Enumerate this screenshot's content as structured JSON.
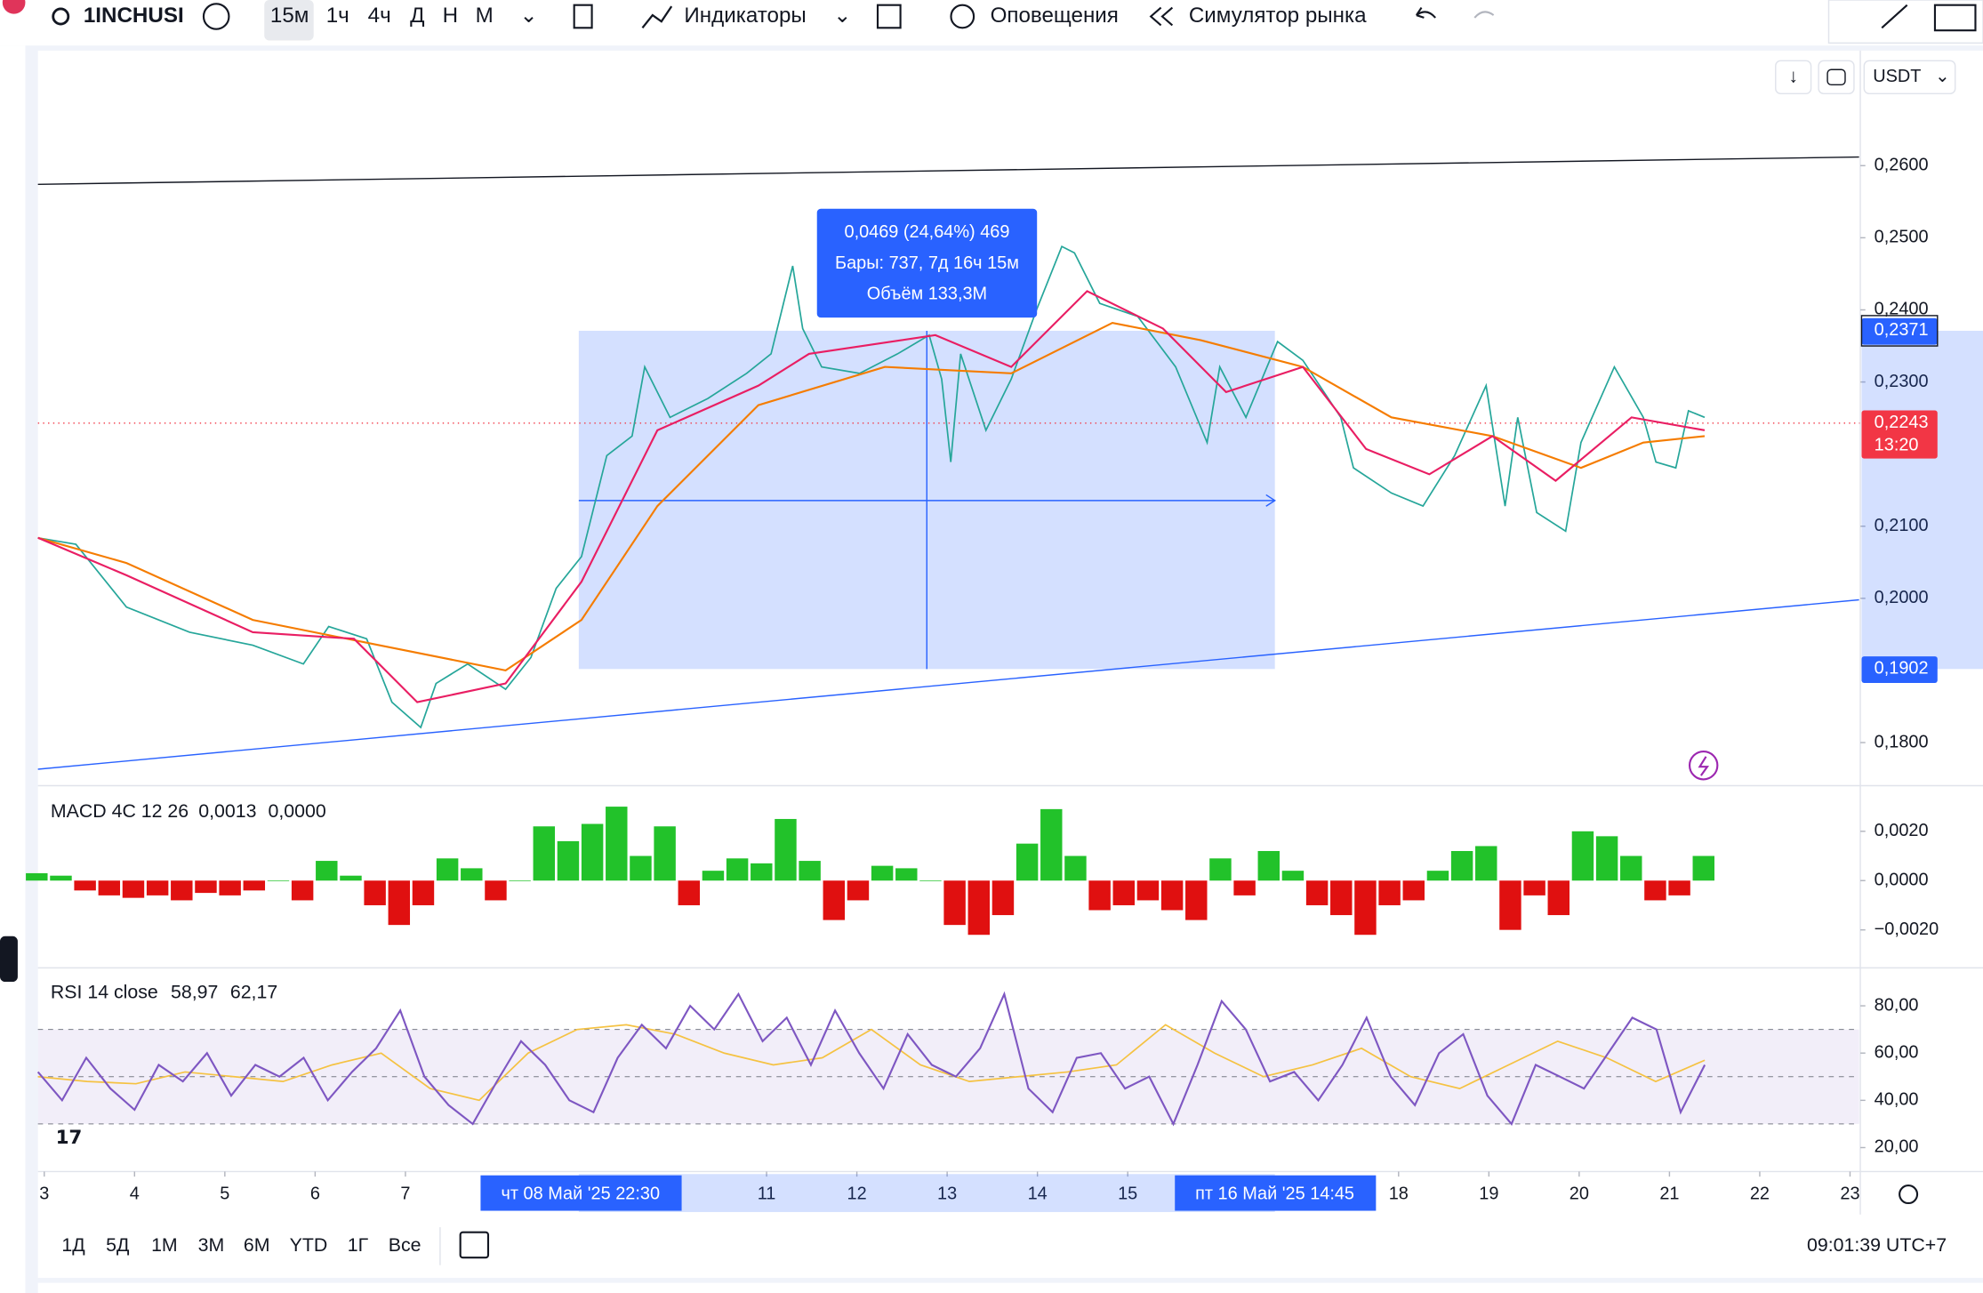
{
  "toolbar": {
    "symbol": "1INCHUSI",
    "intervals": [
      "15м",
      "1ч",
      "4ч",
      "Д",
      "Н",
      "М"
    ],
    "indicators": "Индикаторы",
    "alerts": "Оповещения",
    "replay": "Симулятор рынка"
  },
  "currency": "USDT",
  "time_axis": {
    "xlim": [
      2.93,
      23.1
    ],
    "xticks": [
      3,
      4,
      5,
      6,
      7,
      11,
      12,
      13,
      14,
      15,
      18,
      19,
      20,
      21,
      22,
      23
    ],
    "start_label": "чт 08 Май '25   22:30",
    "end_label": "пт 16 Май '25   14:45"
  },
  "price_pane": {
    "ylim": [
      0.1742,
      0.2756
    ],
    "yticks": [
      {
        "value": 0.26,
        "label": "0,2600"
      },
      {
        "value": 0.25,
        "label": "0,2500"
      },
      {
        "value": 0.24,
        "label": "0,2400"
      },
      {
        "value": 0.23,
        "label": "0,2300"
      },
      {
        "value": 0.21,
        "label": "0,2100"
      },
      {
        "value": 0.2,
        "label": "0,2000"
      },
      {
        "value": 0.18,
        "label": "0,1800"
      }
    ],
    "price": {
      "color": "#26a69a",
      "x": [
        2.93,
        3.35,
        3.91,
        4.61,
        5.31,
        5.87,
        6.15,
        6.57,
        6.85,
        7.17,
        7.34,
        7.69,
        8.11,
        8.39,
        8.67,
        8.95,
        9.23,
        9.51,
        9.65,
        9.93,
        10.35,
        10.78,
        11.05,
        11.29,
        11.4,
        11.61,
        12.03,
        12.45,
        12.8,
        12.94,
        13.04,
        13.15,
        13.43,
        13.71,
        13.99,
        14.27,
        14.41,
        14.69,
        15.11,
        15.53,
        15.88,
        16.02,
        16.31,
        16.66,
        16.94,
        17.36,
        17.5,
        17.92,
        18.27,
        18.62,
        18.97,
        19.18,
        19.32,
        19.53,
        19.85,
        20.02,
        20.39,
        20.71,
        20.85,
        21.07,
        21.21,
        21.39
      ],
      "values": [
        0.2084,
        0.2075,
        0.1988,
        0.1953,
        0.1935,
        0.1909,
        0.1961,
        0.1944,
        0.1856,
        0.1821,
        0.1882,
        0.1909,
        0.1874,
        0.1918,
        0.2014,
        0.2058,
        0.2198,
        0.2225,
        0.2321,
        0.2251,
        0.2277,
        0.2312,
        0.2339,
        0.2461,
        0.2374,
        0.2321,
        0.2312,
        0.2339,
        0.2365,
        0.2304,
        0.2189,
        0.2339,
        0.2233,
        0.2304,
        0.24,
        0.2488,
        0.2479,
        0.2409,
        0.2391,
        0.2321,
        0.2216,
        0.2321,
        0.2251,
        0.2356,
        0.233,
        0.2251,
        0.2181,
        0.2146,
        0.2128,
        0.2198,
        0.2295,
        0.2128,
        0.2251,
        0.2119,
        0.2093,
        0.2216,
        0.2321,
        0.2251,
        0.2189,
        0.2181,
        0.226,
        0.2251
      ]
    },
    "ma_slow": {
      "color": "#f57c00",
      "x": [
        2.93,
        3.91,
        5.31,
        6.71,
        8.11,
        8.95,
        9.79,
        10.91,
        12.31,
        13.71,
        14.83,
        15.81,
        16.94,
        17.92,
        19.04,
        20.02,
        20.71,
        21.39
      ],
      "values": [
        0.2084,
        0.2049,
        0.197,
        0.1935,
        0.19,
        0.197,
        0.2128,
        0.2268,
        0.2321,
        0.2312,
        0.2382,
        0.2358,
        0.2321,
        0.2251,
        0.2225,
        0.2181,
        0.2216,
        0.2225
      ]
    },
    "ma_fast": {
      "color": "#e91e63",
      "x": [
        2.93,
        3.91,
        5.31,
        6.43,
        7.13,
        8.11,
        8.95,
        9.79,
        10.91,
        11.47,
        12.87,
        13.71,
        14.55,
        15.39,
        16.09,
        16.94,
        17.64,
        18.34,
        19.04,
        19.74,
        20.58,
        21.39
      ],
      "values": [
        0.2084,
        0.2032,
        0.1953,
        0.1944,
        0.1856,
        0.1882,
        0.2023,
        0.2233,
        0.2295,
        0.2339,
        0.2365,
        0.2321,
        0.2426,
        0.2374,
        0.2286,
        0.2321,
        0.2207,
        0.2172,
        0.2225,
        0.2163,
        0.2251,
        0.2233
      ]
    },
    "trend_black": {
      "x": [
        2.93,
        23.1
      ],
      "values": [
        0.2574,
        0.2612
      ]
    },
    "trend_blue": {
      "x": [
        2.93,
        23.1
      ],
      "values": [
        0.1763,
        0.1998
      ]
    },
    "range": {
      "x": [
        8.92,
        16.63
      ],
      "top": 0.2371,
      "bottom": 0.1902,
      "top_label": "0,2371",
      "bottom_label": "0,1902",
      "lines": [
        "0,0469 (24,64%) 469",
        "Бары: 737, 7д 16ч 15м",
        "Объём 133,3M"
      ]
    },
    "last": {
      "value": 0.2243,
      "label": "0,2243",
      "countdown": "13:20"
    }
  },
  "macd_pane": {
    "title": "MACD 4C 12 26",
    "v1": "0,0013",
    "v2": "0,0000",
    "ylim": [
      -0.00354,
      0.0038
    ],
    "yticks": [
      {
        "value": 0.002,
        "label": "0,0020"
      },
      {
        "value": 0,
        "label": "0,0000"
      },
      {
        "value": -0.002,
        "label": "−0,0020"
      }
    ],
    "up_color": "#22c22a",
    "down_color": "#e01010",
    "values": [
      0.0003,
      0.0002,
      -0.0004,
      -0.0006,
      -0.0007,
      -0.0006,
      -0.0008,
      -0.0005,
      -0.0006,
      -0.0004,
      0,
      -0.0008,
      0.0008,
      0.0002,
      -0.001,
      -0.0018,
      -0.001,
      0.0009,
      0.0005,
      -0.0008,
      0,
      0.0022,
      0.0016,
      0.0023,
      0.003,
      0.001,
      0.0022,
      -0.001,
      0.0004,
      0.0009,
      0.0007,
      0.0025,
      0.0008,
      -0.0016,
      -0.0008,
      0.0006,
      0.0005,
      0,
      -0.0018,
      -0.0022,
      -0.0014,
      0.0015,
      0.0029,
      0.001,
      -0.0012,
      -0.001,
      -0.0008,
      -0.0012,
      -0.0016,
      0.0009,
      -0.0006,
      0.0012,
      0.0004,
      -0.001,
      -0.0014,
      -0.0022,
      -0.001,
      -0.0008,
      0.0004,
      0.0012,
      0.0014,
      -0.002,
      -0.0006,
      -0.0014,
      0.002,
      0.0018,
      0.001,
      -0.0008,
      -0.0006,
      0.001
    ]
  },
  "rsi_pane": {
    "title": "RSI 14 close",
    "v1": "58,97",
    "v2": "62,17",
    "ylim": [
      10.4,
      95
    ],
    "yticks": [
      {
        "value": 80,
        "label": "80,00"
      },
      {
        "value": 60,
        "label": "60,00"
      },
      {
        "value": 40,
        "label": "40,00"
      },
      {
        "value": 20,
        "label": "20,00"
      }
    ],
    "bands": [
      70,
      50,
      30
    ],
    "rsi": {
      "color": "#7e57c2",
      "values": [
        52,
        40,
        58,
        45,
        36,
        55,
        48,
        60,
        42,
        55,
        50,
        58,
        40,
        52,
        62,
        78,
        50,
        38,
        30,
        48,
        65,
        55,
        40,
        35,
        58,
        72,
        62,
        80,
        70,
        85,
        65,
        75,
        55,
        78,
        60,
        45,
        68,
        55,
        50,
        62,
        85,
        45,
        35,
        58,
        60,
        45,
        50,
        30,
        55,
        82,
        70,
        48,
        52,
        40,
        55,
        75,
        50,
        38,
        60,
        68,
        42,
        30,
        55,
        50,
        45,
        60,
        75,
        70,
        35,
        55
      ]
    },
    "ma": {
      "color": "#f5c242",
      "values": [
        50,
        48,
        47,
        52,
        50,
        48,
        55,
        60,
        45,
        40,
        60,
        70,
        72,
        68,
        60,
        55,
        58,
        70,
        55,
        48,
        50,
        52,
        55,
        72,
        60,
        50,
        55,
        62,
        50,
        45,
        55,
        65,
        58,
        48,
        57
      ]
    }
  },
  "bottom_bar": {
    "ranges": [
      "1Д",
      "5Д",
      "1М",
      "3М",
      "6М",
      "YTD",
      "1Г",
      "Все"
    ],
    "clock": "09:01:39 UTC+7"
  }
}
